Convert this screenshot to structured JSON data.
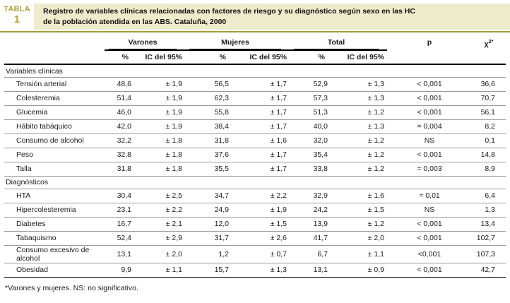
{
  "page": {
    "tabla_label": "TABLA",
    "tabla_number": "1",
    "title_line1": "Registro de variables clínicas relacionadas con factores de riesgo y su diagnóstico según sexo en las HC",
    "title_line2": "de la población atendida en las ABS. Cataluña, 2000",
    "footnote": "*Varones y mujeres. NS: no significativo.",
    "colors": {
      "accent_gold": "#b2a13c",
      "title_bg": "#eeebcc",
      "rule_olive": "#a89936"
    }
  },
  "table": {
    "column_groups": [
      {
        "label": "Varones"
      },
      {
        "label": "Mujeres"
      },
      {
        "label": "Total"
      }
    ],
    "subheader_pct": "%",
    "subheader_ic": "IC del 95%",
    "p_label": "p",
    "chi_label_base": "χ",
    "chi_label_sup": "2*",
    "sections": [
      {
        "name": "Variables clínicas",
        "rows": [
          {
            "label": "Tensión arterial",
            "cells": [
              "48,6",
              "± 1,9",
              "56,5",
              "± 1,7",
              "52,9",
              "± 1,3",
              "< 0,001",
              "36,6"
            ]
          },
          {
            "label": "Colesteremia",
            "cells": [
              "51,4",
              "± 1,9",
              "62,3",
              "± 1,7",
              "57,3",
              "± 1,3",
              "< 0,001",
              "70,7"
            ]
          },
          {
            "label": "Glucemia",
            "cells": [
              "46,0",
              "± 1,9",
              "55,8",
              "± 1,7",
              "51,3",
              "± 1,2",
              "< 0,001",
              "56,1"
            ]
          },
          {
            "label": "Hábito tabáquico",
            "cells": [
              "42,0",
              "± 1,9",
              "38,4",
              "± 1,7",
              "40,0",
              "± 1,3",
              "= 0,004",
              "8,2"
            ]
          },
          {
            "label": "Consumo de alcohol",
            "cells": [
              "32,2",
              "± 1,8",
              "31,8",
              "± 1,6",
              "32,0",
              "± 1,2",
              "NS",
              "0,1"
            ]
          },
          {
            "label": "Peso",
            "cells": [
              "32,8",
              "± 1,8",
              "37,6",
              "± 1,7",
              "35,4",
              "± 1,2",
              "< 0,001",
              "14,8"
            ]
          },
          {
            "label": "Talla",
            "cells": [
              "31,8",
              "± 1,8",
              "35,5",
              "± 1,7",
              "33,8",
              "± 1,2",
              "= 0,003",
              "8,9"
            ]
          }
        ]
      },
      {
        "name": "Diagnósticos",
        "rows": [
          {
            "label": "HTA",
            "cells": [
              "30,4",
              "± 2,5",
              "34,7",
              "± 2,2",
              "32,9",
              "± 1,6",
              "= 0,01",
              "6,4"
            ]
          },
          {
            "label": "Hipercolesteremia",
            "cells": [
              "23,1",
              "± 2,2",
              "24,9",
              "± 1,9",
              "24,2",
              "± 1,5",
              "NS",
              "1,3"
            ]
          },
          {
            "label": "Diabetes",
            "cells": [
              "16,7",
              "± 2,1",
              "12,0",
              "± 1,5",
              "13,9",
              "± 1,2",
              "< 0,001",
              "13,4"
            ]
          },
          {
            "label": "Tabaquismo",
            "cells": [
              "52,4",
              "± 2,9",
              "31,7",
              "± 2,6",
              "41,7",
              "± 2,0",
              "< 0,001",
              "102,7"
            ]
          },
          {
            "label": "Consumo excesivo de alcohol",
            "cells": [
              "13,1",
              "± 2,0",
              "1,2",
              "± 0,7",
              "6,7",
              "± 1,1",
              "<0,001",
              "107,3"
            ]
          },
          {
            "label": "Obesidad",
            "cells": [
              "9,9",
              "± 1,1",
              "15,7",
              "± 1,3",
              "13,1",
              "± 0,9",
              "< 0,001",
              "42,7"
            ]
          }
        ]
      }
    ]
  }
}
